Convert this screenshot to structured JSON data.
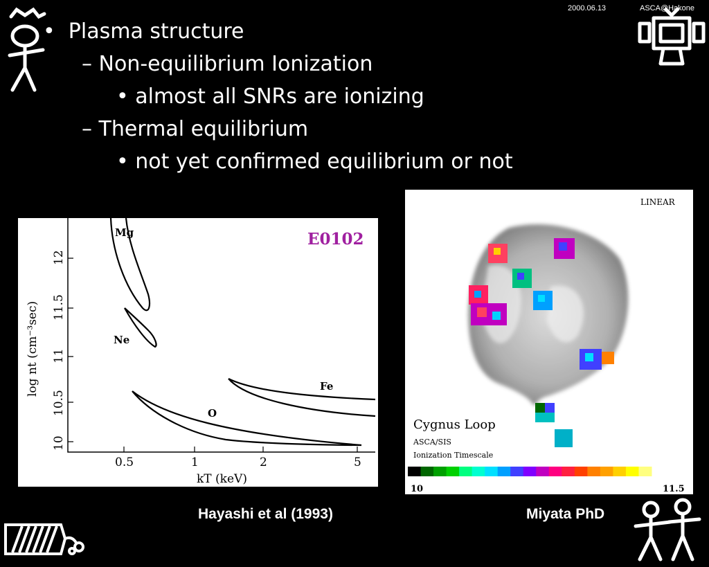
{
  "header": {
    "date": "2000.06.13",
    "venue": "ASCA@Hakone"
  },
  "bullets": {
    "b1": "Plasma structure",
    "b2": "Non-equilibrium Ionization",
    "b3": "almost all SNRs are ionizing",
    "b4": "Thermal equilibrium",
    "b5": "not yet confirmed equilibrium or not"
  },
  "left_figure": {
    "label": "E0102",
    "label_color": "#a020a0",
    "ylabel": "log nt (cm⁻³sec)",
    "xlabel": "kT (keV)",
    "yticks": [
      "10",
      "10.5",
      "11",
      "11.5",
      "12"
    ],
    "xticks": [
      "0.5",
      "1",
      "2",
      "5"
    ],
    "curve_labels": {
      "mg": "Mg",
      "ne": "Ne",
      "o": "O",
      "fe": "Fe"
    }
  },
  "right_figure": {
    "scale_mode": "LINEAR",
    "title": "Cygnus Loop",
    "instrument": "ASCA/SIS",
    "quantity": "Ionization Timescale",
    "colorbar_min": "10",
    "colorbar_max": "11.5",
    "colorbar_colors": [
      "#000000",
      "#006600",
      "#00a000",
      "#00d000",
      "#00ff80",
      "#00ffd0",
      "#00e0ff",
      "#00a0ff",
      "#4040ff",
      "#8000ff",
      "#c000c0",
      "#ff0080",
      "#ff2040",
      "#ff4000",
      "#ff8000",
      "#ffa000",
      "#ffd000",
      "#ffff00",
      "#ffff80"
    ]
  },
  "captions": {
    "left": "Hayashi et al (1993)",
    "right": "Miyata PhD"
  },
  "icons": {
    "top_left": "stick-figure-icon",
    "top_right": "tv-robot-icon",
    "bottom_left": "caterpillar-icon",
    "bottom_right": "two-figures-icon"
  }
}
